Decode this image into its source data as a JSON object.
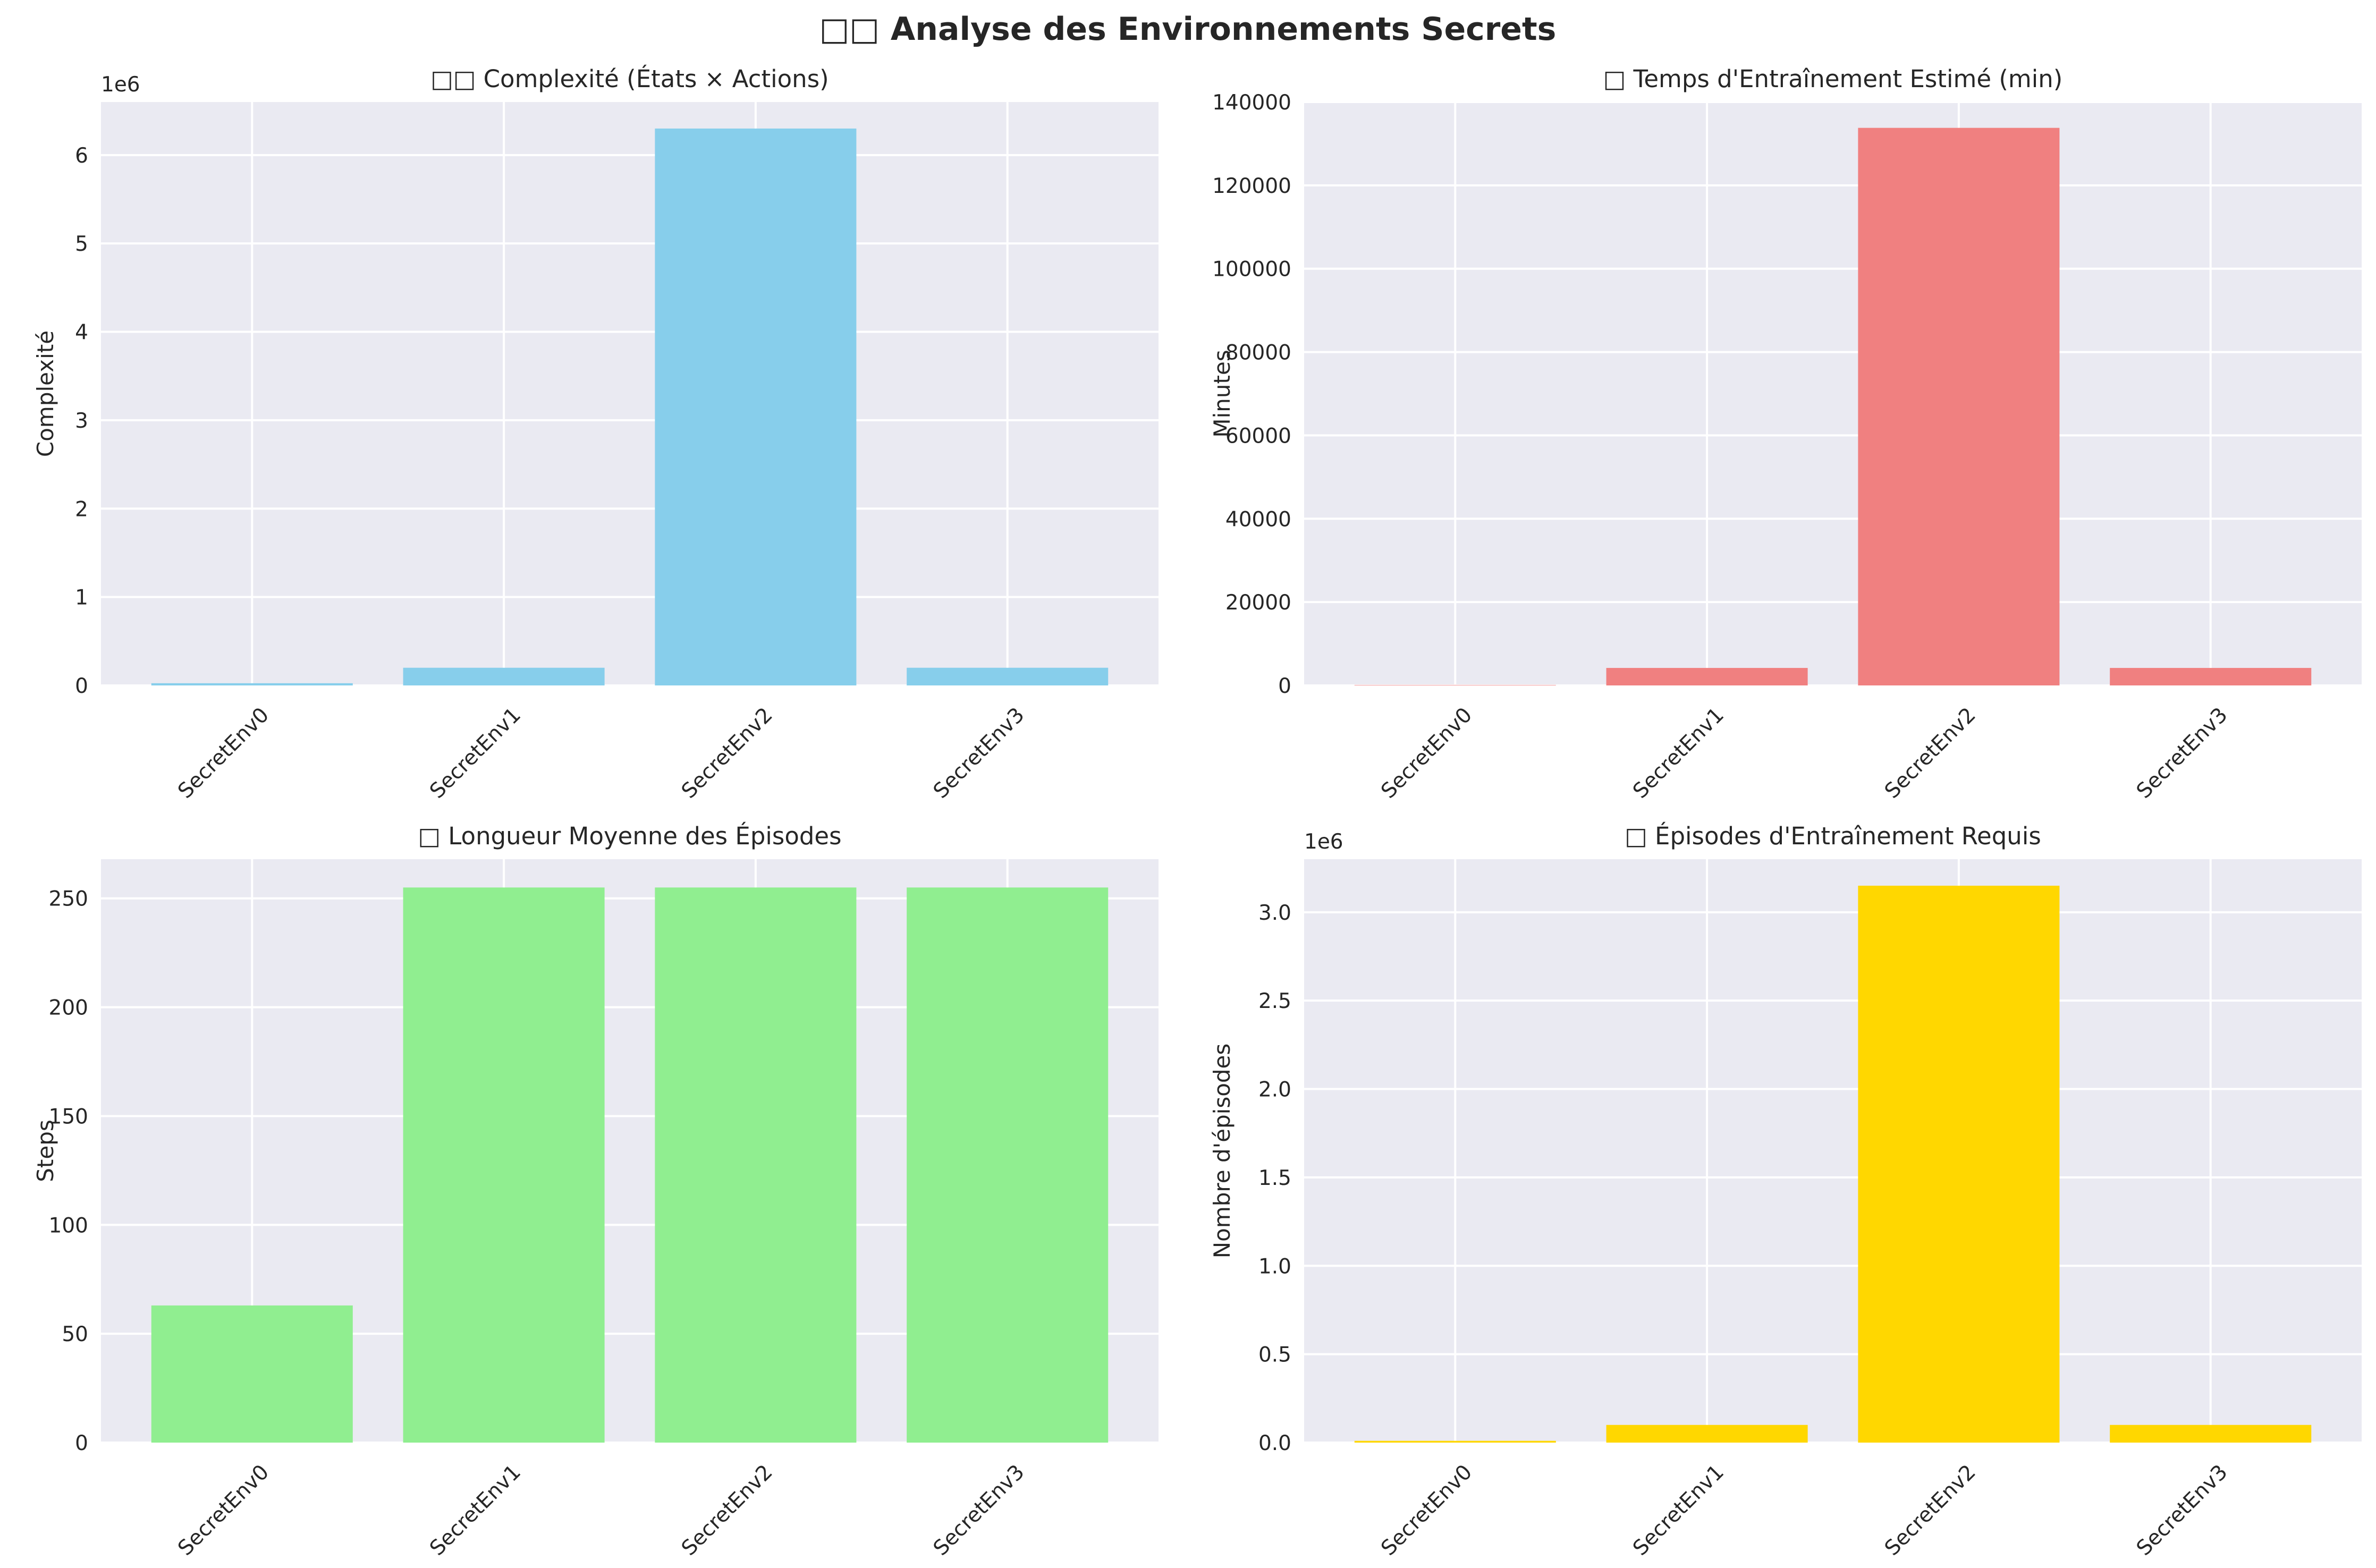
{
  "figure": {
    "title": "□□ Analyse des Environnements Secrets"
  },
  "chart_data": [
    {
      "type": "bar",
      "title": "□□ Complexité (États × Actions)",
      "xlabel": "",
      "ylabel": "Complexité",
      "categories": [
        "SecretEnv0",
        "SecretEnv1",
        "SecretEnv2",
        "SecretEnv3"
      ],
      "values": [
        25000,
        200000,
        6300000,
        200000
      ],
      "ylim": [
        0,
        6600000
      ],
      "yticks": [
        0,
        1000000,
        2000000,
        3000000,
        4000000,
        5000000,
        6000000
      ],
      "ytick_labels": [
        "0",
        "1",
        "2",
        "3",
        "4",
        "5",
        "6"
      ],
      "offset_text": "1e6",
      "color": "#87CEEB",
      "grid": true
    },
    {
      "type": "bar",
      "title": "□ Temps d'Entraînement Estimé (min)",
      "xlabel": "",
      "ylabel": "Minutes",
      "categories": [
        "SecretEnv0",
        "SecretEnv1",
        "SecretEnv2",
        "SecretEnv3"
      ],
      "values": [
        100,
        4200,
        133800,
        4200
      ],
      "ylim": [
        0,
        140000
      ],
      "yticks": [
        0,
        20000,
        40000,
        60000,
        80000,
        100000,
        120000,
        140000
      ],
      "ytick_labels": [
        "0",
        "20000",
        "40000",
        "60000",
        "80000",
        "100000",
        "120000",
        "140000"
      ],
      "offset_text": "",
      "color": "#F08080",
      "grid": true
    },
    {
      "type": "bar",
      "title": "□ Longueur Moyenne des Épisodes",
      "xlabel": "",
      "ylabel": "Steps",
      "categories": [
        "SecretEnv0",
        "SecretEnv1",
        "SecretEnv2",
        "SecretEnv3"
      ],
      "values": [
        63,
        255,
        255,
        255
      ],
      "ylim": [
        0,
        268
      ],
      "yticks": [
        0,
        50,
        100,
        150,
        200,
        250
      ],
      "ytick_labels": [
        "0",
        "50",
        "100",
        "150",
        "200",
        "250"
      ],
      "offset_text": "",
      "color": "#90EE90",
      "grid": true
    },
    {
      "type": "bar",
      "title": "□ Épisodes d'Entraînement Requis",
      "xlabel": "",
      "ylabel": "Nombre d'épisodes",
      "categories": [
        "SecretEnv0",
        "SecretEnv1",
        "SecretEnv2",
        "SecretEnv3"
      ],
      "values": [
        10000,
        100000,
        3150000,
        100000
      ],
      "ylim": [
        0,
        3300000
      ],
      "yticks": [
        0,
        500000,
        1000000,
        1500000,
        2000000,
        2500000,
        3000000
      ],
      "ytick_labels": [
        "0.0",
        "0.5",
        "1.0",
        "1.5",
        "2.0",
        "2.5",
        "3.0"
      ],
      "offset_text": "1e6",
      "color": "#FFD700",
      "grid": true
    }
  ]
}
